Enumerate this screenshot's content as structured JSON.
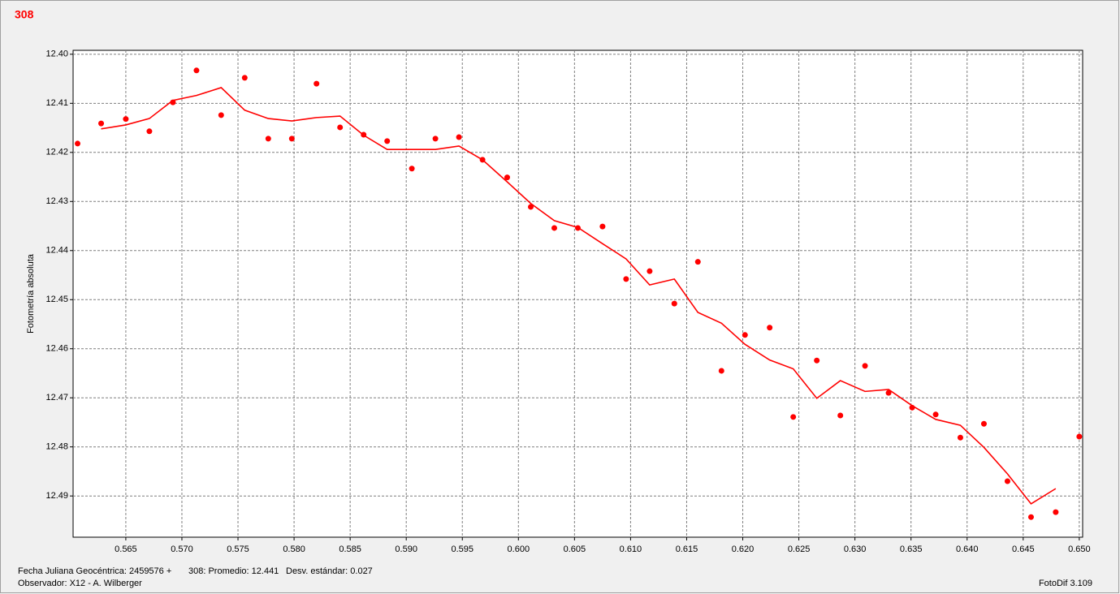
{
  "chart_data": {
    "type": "scatter",
    "title": "308",
    "y_label": "Fotometría absoluta",
    "footer": {
      "date_label": "Fecha Juliana Geocéntrica: 2459576 +",
      "mean": "308: Promedio: 12.441",
      "stdev": "Desv. estándar: 0.027",
      "observer": "Observador: X12 - A. Wilberger",
      "software": "FotoDif 3.109"
    },
    "xlim": [
      0.5603,
      0.6503
    ],
    "ylim": [
      12.4984,
      12.3992
    ],
    "xticks": [
      0.565,
      {
        "value": 0.57,
        "label": "0.570"
      },
      0.575,
      {
        "value": 0.58,
        "label": "0.580"
      },
      0.585,
      {
        "value": 0.59,
        "label": "0.590"
      },
      0.595,
      {
        "value": 0.6,
        "label": "0.600"
      },
      0.605,
      {
        "value": 0.61,
        "label": "0.610"
      },
      0.615,
      {
        "value": 0.62,
        "label": "0.620"
      },
      0.625,
      {
        "value": 0.63,
        "label": "0.630"
      },
      0.635,
      {
        "value": 0.64,
        "label": "0.640"
      },
      0.645,
      {
        "value": 0.65,
        "label": "0.650"
      }
    ],
    "yticks": [
      {
        "value": 12.4,
        "label": "12.40"
      },
      12.41,
      12.42,
      12.43,
      12.44,
      12.45,
      12.46,
      12.47,
      12.48,
      12.49
    ],
    "grid": true,
    "x": [
      0.5607,
      0.5628,
      0.565,
      0.5671,
      0.5692,
      0.5713,
      0.5735,
      0.5756,
      0.5777,
      0.5798,
      0.582,
      0.5841,
      0.5862,
      0.5883,
      0.5905,
      0.5926,
      0.5947,
      0.5968,
      0.599,
      0.6011,
      0.6032,
      0.6053,
      0.6075,
      0.6096,
      0.6117,
      0.6139,
      0.616,
      0.6181,
      0.6202,
      0.6224,
      0.6245,
      0.6266,
      0.6287,
      0.6309,
      0.633,
      0.6351,
      0.6372,
      0.6394,
      0.6415,
      0.6436,
      0.6457,
      0.6479,
      0.65
    ],
    "series": [
      {
        "type": "scatter",
        "color": "#ff0000",
        "values": [
          12.4182,
          12.4141,
          12.4132,
          12.4157,
          12.4098,
          12.4033,
          12.4124,
          12.4048,
          12.4172,
          12.4172,
          12.406,
          12.4149,
          12.4164,
          12.4177,
          12.4233,
          12.4172,
          12.4169,
          12.4215,
          12.4251,
          12.4311,
          12.4354,
          12.4354,
          12.4351,
          12.4458,
          12.4442,
          12.4508,
          12.4423,
          12.4645,
          12.4572,
          12.4557,
          12.4739,
          12.4624,
          12.4736,
          12.4635,
          12.469,
          12.472,
          12.4734,
          12.4781,
          12.4753,
          12.487,
          12.4943,
          12.4933,
          12.4779
        ]
      },
      {
        "type": "line",
        "color": "#ff0000",
        "values": [
          null,
          12.4152,
          12.4144,
          12.4131,
          12.4094,
          12.4084,
          12.4068,
          12.4114,
          12.4131,
          12.4136,
          12.4129,
          12.4126,
          12.4165,
          12.4194,
          12.4194,
          12.4194,
          12.4187,
          12.4215,
          12.426,
          12.4304,
          12.4339,
          12.4353,
          12.4386,
          12.4417,
          12.447,
          12.4458,
          12.4526,
          12.4548,
          12.4591,
          12.4623,
          12.4641,
          12.4701,
          12.4665,
          12.4687,
          12.4683,
          12.4716,
          12.4744,
          12.4756,
          12.4801,
          12.4855,
          12.4916,
          12.4885,
          null
        ]
      }
    ]
  }
}
